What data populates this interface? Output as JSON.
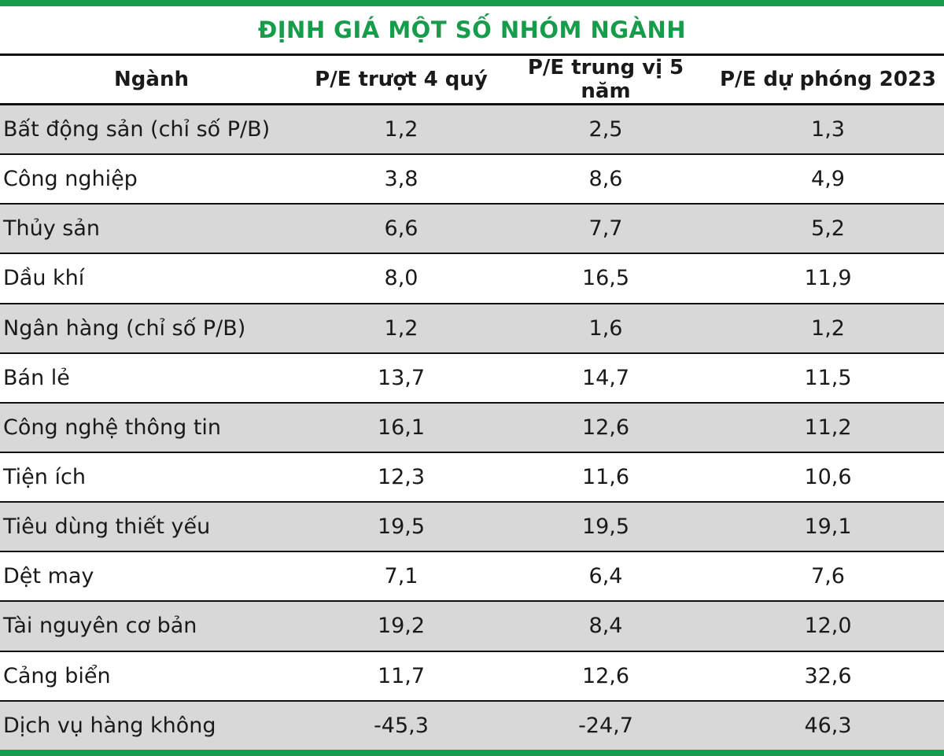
{
  "title": "ĐỊNH GIÁ MỘT SỐ NHÓM NGÀNH",
  "colors": {
    "accent_green": "#169c4b",
    "row_gray": "#d8d8d8",
    "line_black": "#111111"
  },
  "chart_data": {
    "type": "table",
    "title": "ĐỊNH GIÁ MỘT SỐ NHÓM NGÀNH",
    "columns": [
      "Ngành",
      "P/E trượt 4 quý",
      "P/E trung vị 5 năm",
      "P/E dự phóng 2023"
    ],
    "rows": [
      [
        "Bất động sản (chỉ số P/B)",
        "1,2",
        "2,5",
        "1,3"
      ],
      [
        "Công nghiệp",
        "3,8",
        "8,6",
        "4,9"
      ],
      [
        "Thủy sản",
        "6,6",
        "7,7",
        "5,2"
      ],
      [
        "Dầu khí",
        "8,0",
        "16,5",
        "11,9"
      ],
      [
        "Ngân hàng (chỉ số P/B)",
        "1,2",
        "1,6",
        "1,2"
      ],
      [
        "Bán lẻ",
        "13,7",
        "14,7",
        "11,5"
      ],
      [
        "Công nghệ thông tin",
        "16,1",
        "12,6",
        "11,2"
      ],
      [
        "Tiện ích",
        "12,3",
        "11,6",
        "10,6"
      ],
      [
        "Tiêu dùng thiết yếu",
        "19,5",
        "19,5",
        "19,1"
      ],
      [
        "Dệt may",
        "7,1",
        "6,4",
        "7,6"
      ],
      [
        "Tài nguyên cơ bản",
        "19,2",
        "8,4",
        "12,0"
      ],
      [
        "Cảng biển",
        "11,7",
        "12,6",
        "32,6"
      ],
      [
        "Dịch vụ hàng không",
        "-45,3",
        "-24,7",
        "46,3"
      ]
    ],
    "layout": {
      "header_row": true,
      "alternating_row_shading": "gray-white starting gray",
      "first_column_align": "left",
      "value_columns_align": "center"
    }
  }
}
